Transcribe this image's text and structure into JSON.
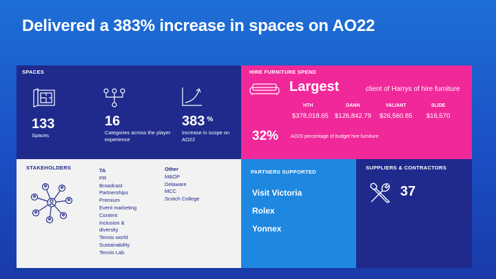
{
  "slide": {
    "title": "Delivered a 383% increase in spaces on AO22"
  },
  "spaces": {
    "label": "SPACES",
    "stats": [
      {
        "number": "133",
        "text": "Spaces",
        "icon": "blueprint-icon"
      },
      {
        "number": "16",
        "text": "Categories across the player experience",
        "icon": "org-chart-icon"
      },
      {
        "number": "383",
        "suffix": "%",
        "text": "Increase in scope on AO22",
        "icon": "growth-chart-icon"
      }
    ]
  },
  "hire": {
    "label": "HIRE FURNITURE SPEND",
    "largest": "Largest",
    "largest_rest": "client of Harrys of hire furniture",
    "vendors": [
      {
        "name": "HTH",
        "value": "$378,018.65"
      },
      {
        "name": "DANN",
        "value": "$126,842.79"
      },
      {
        "name": "VALIANT",
        "value": "$26,560.85"
      },
      {
        "name": "SLIDE",
        "value": "$16,570"
      }
    ],
    "percent": "32%",
    "percent_text": "AO23 percentage of budget hire furniture"
  },
  "stakeholders": {
    "label": "STAKEHOLDERS",
    "col1": {
      "head": "TA",
      "items": [
        "PR",
        "Broadcast",
        "Partnerships",
        "Premium",
        "Event marketing",
        "Content",
        "Inclusion &",
        "diversity",
        "Tennis world",
        "Sustainability",
        "Tennis Lab"
      ]
    },
    "col2": {
      "head": "Other",
      "items": [
        "M&OP",
        "Delaware",
        "MCC",
        "Scotch College"
      ]
    }
  },
  "partners": {
    "label": "PARTNERS SUPPORTED",
    "items": [
      "Visit Victoria",
      "Rolex",
      "Yonnex"
    ]
  },
  "suppliers": {
    "label": "SUPPLIERS & CONTRACTORS",
    "count": "37"
  },
  "colors": {
    "navy": "#1f2a8c",
    "pink": "#f0289a",
    "light_blue": "#1e88e0",
    "light_grey": "#f2f2f2"
  }
}
